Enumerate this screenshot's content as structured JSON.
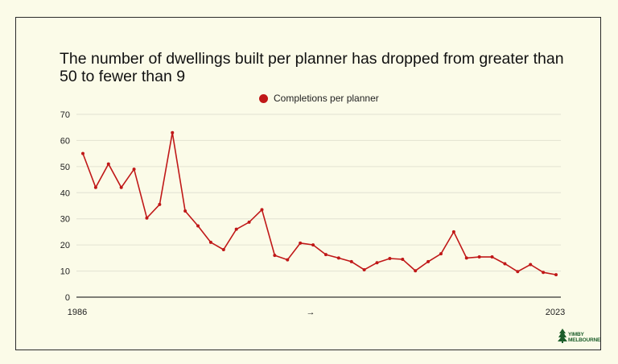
{
  "chart_data": {
    "type": "line",
    "title": "The number of dwellings built per planner has dropped from greater than 50 to fewer than 9",
    "legend": "top",
    "series": [
      {
        "name": "Completions per planner",
        "color": "#c01818",
        "values": [
          55,
          42,
          51,
          42,
          49,
          30.3,
          35.5,
          63,
          33,
          27.3,
          21,
          18.2,
          26,
          28.7,
          33.5,
          16,
          14.3,
          20.7,
          20,
          16.3,
          15,
          13.6,
          10.5,
          13.2,
          14.8,
          14.5,
          10.1,
          13.6,
          16.6,
          25,
          15,
          15.4,
          15.4,
          12.8,
          9.8,
          12.5,
          9.5,
          8.6
        ]
      }
    ],
    "x_start_label": "1986",
    "x_end_label": "2023",
    "x_arrow": "→",
    "ylim": [
      0,
      70
    ],
    "yticks": [
      0,
      10,
      20,
      30,
      40,
      50,
      60,
      70
    ],
    "grid": true
  },
  "logo": {
    "line1": "YIMBY",
    "line2": "MELBOURNE",
    "color": "#1d5e2b"
  }
}
